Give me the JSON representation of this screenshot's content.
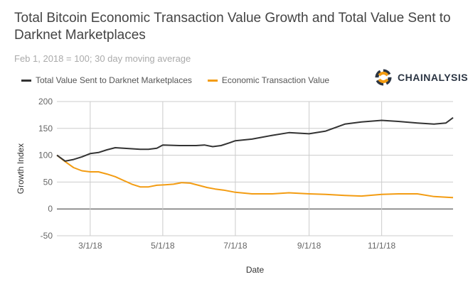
{
  "chart_data": {
    "type": "line",
    "title": "Total Bitcoin Economic Transaction Value Growth and Total Value Sent to Darknet Marketplaces",
    "subtitle": "Feb 1, 2018 = 100; 30 day moving average",
    "xlabel": "Date",
    "ylabel": "Growth Index",
    "ylim": [
      -50,
      200
    ],
    "yticks": [
      "200",
      "150",
      "100",
      "50",
      "0",
      "-50"
    ],
    "xlim": [
      "2018-02-01",
      "2018-12-31"
    ],
    "xticks": [
      {
        "date": "2018-03-01",
        "label": "3/1/18"
      },
      {
        "date": "2018-05-01",
        "label": "5/1/18"
      },
      {
        "date": "2018-07-01",
        "label": "7/1/18"
      },
      {
        "date": "2018-09-01",
        "label": "9/1/18"
      },
      {
        "date": "2018-11-01",
        "label": "11/1/18"
      }
    ],
    "grid": true,
    "legend_position": "top-left",
    "series": [
      {
        "name": "Total Value Sent to Darknet Marketplaces",
        "color": "#333333",
        "x": [
          "2018-02-01",
          "2018-02-08",
          "2018-02-15",
          "2018-02-22",
          "2018-03-01",
          "2018-03-08",
          "2018-03-15",
          "2018-03-22",
          "2018-03-29",
          "2018-04-05",
          "2018-04-12",
          "2018-04-19",
          "2018-04-26",
          "2018-05-01",
          "2018-05-15",
          "2018-05-29",
          "2018-06-05",
          "2018-06-12",
          "2018-06-19",
          "2018-06-26",
          "2018-07-01",
          "2018-07-15",
          "2018-08-01",
          "2018-08-15",
          "2018-09-01",
          "2018-09-15",
          "2018-10-01",
          "2018-10-15",
          "2018-11-01",
          "2018-11-15",
          "2018-12-01",
          "2018-12-15",
          "2018-12-25",
          "2018-12-31"
        ],
        "y": [
          100,
          89,
          92,
          97,
          103,
          105,
          110,
          114,
          113,
          112,
          111,
          111,
          113,
          119,
          118,
          118,
          119,
          116,
          118,
          123,
          127,
          130,
          137,
          142,
          140,
          145,
          158,
          162,
          165,
          163,
          160,
          158,
          160,
          170
        ]
      },
      {
        "name": "Economic Transaction Value",
        "color": "#f39c12",
        "x": [
          "2018-02-01",
          "2018-02-08",
          "2018-02-15",
          "2018-02-22",
          "2018-03-01",
          "2018-03-08",
          "2018-03-15",
          "2018-03-22",
          "2018-03-29",
          "2018-04-05",
          "2018-04-12",
          "2018-04-19",
          "2018-04-26",
          "2018-05-03",
          "2018-05-10",
          "2018-05-17",
          "2018-05-24",
          "2018-05-31",
          "2018-06-07",
          "2018-06-14",
          "2018-06-21",
          "2018-07-01",
          "2018-07-15",
          "2018-08-01",
          "2018-08-15",
          "2018-09-01",
          "2018-09-15",
          "2018-10-01",
          "2018-10-15",
          "2018-11-01",
          "2018-11-15",
          "2018-12-01",
          "2018-12-15",
          "2018-12-31"
        ],
        "y": [
          100,
          88,
          77,
          71,
          69,
          69,
          65,
          60,
          53,
          46,
          41,
          41,
          44,
          45,
          46,
          49,
          48,
          44,
          40,
          37,
          35,
          31,
          28,
          28,
          30,
          28,
          27,
          25,
          24,
          27,
          28,
          28,
          23,
          21
        ]
      }
    ]
  },
  "logo": {
    "text": "CHAINALYSIS",
    "colors": [
      "#2b3543",
      "#f39c12"
    ]
  }
}
